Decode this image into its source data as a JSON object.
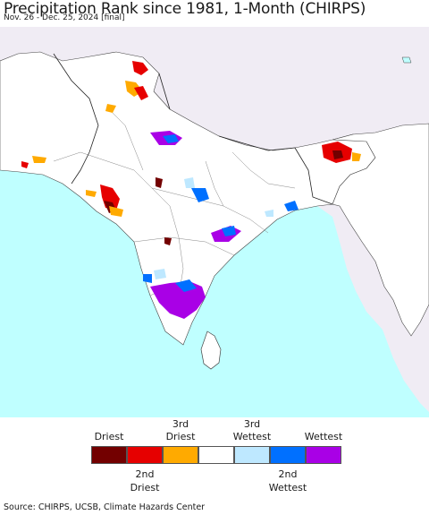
{
  "header": {
    "title": "Precipitation Rank since 1981, 1-Month (CHIRPS)",
    "subtitle": "Nov. 26 - Dec. 25, 2024 [final]"
  },
  "legend": {
    "categories": [
      {
        "label": "Driest",
        "color": "#730000"
      },
      {
        "label": "2nd Driest",
        "color": "#e60000"
      },
      {
        "label": "3rd Driest",
        "color": "#ffaa00"
      },
      {
        "label": "",
        "color": "#ffffff"
      },
      {
        "label": "3rd Wettest",
        "color": "#bee8ff"
      },
      {
        "label": "2nd Wettest",
        "color": "#0070ff"
      },
      {
        "label": "Wettest",
        "color": "#a900e6"
      }
    ],
    "top_labels": {
      "driest": "Driest",
      "third_driest_line1": "3rd",
      "third_driest_line2": "Driest",
      "third_wettest_line1": "3rd",
      "third_wettest_line2": "Wettest",
      "wettest": "Wettest"
    },
    "bottom_labels": {
      "second_driest_line1": "2nd",
      "second_driest_line2": "Driest",
      "second_wettest_line1": "2nd",
      "second_wettest_line2": "Wettest"
    }
  },
  "map": {
    "ocean_color": "#bfffff",
    "land_color": "#ffffff",
    "outside_land_color": "#f0ecf4"
  },
  "footer": {
    "source": "Source: CHIRPS, UCSB, Climate Hazards Center"
  }
}
